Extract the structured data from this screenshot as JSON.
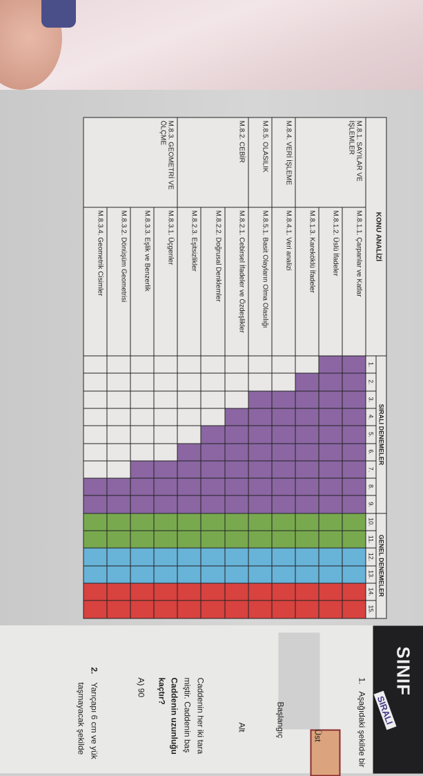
{
  "table": {
    "header": {
      "topic_analysis": "KONU ANALİZİ",
      "sequential_tests": "SIRALI DENEMELER",
      "general_tests": "GENEL DENEMELER",
      "test_numbers": [
        "1.",
        "2.",
        "3.",
        "4.",
        "5.",
        "6.",
        "7.",
        "8.",
        "9.",
        "10.",
        "11.",
        "12.",
        "13.",
        "14.",
        "15."
      ]
    },
    "categories": [
      {
        "label": "M.8.1. SAYILAR VE İŞLEMLER",
        "rows": 3
      },
      {
        "label": "M.8.4. VERİ İŞLEME",
        "rows": 1
      },
      {
        "label": "M.8.5. OLASILIK",
        "rows": 1
      },
      {
        "label": "M.8.2. CEBİR",
        "rows": 3
      },
      {
        "label": "M.8.3. GEOMETRİ VE ÖLÇME",
        "rows": 4
      }
    ],
    "topics": [
      {
        "label": "M.8.1.1. Çarpanlar ve Katlar",
        "first_test": 1
      },
      {
        "label": "M.8.1.2. Üslü İfadeler",
        "first_test": 1
      },
      {
        "label": "M.8.1.3. Kareköklü İfadeler",
        "first_test": 2
      },
      {
        "label": "M.8.4.1. Veri analizi",
        "first_test": 3
      },
      {
        "label": "M.8.5.1. Basit Olayların Olma Olasılığı",
        "first_test": 3
      },
      {
        "label": "M.8.2.1. Cebirsel İfadeler ve Özdeşlikler",
        "first_test": 4
      },
      {
        "label": "M.8.2.2. Doğrusal Denklemler",
        "first_test": 5
      },
      {
        "label": "M.8.2.3. Eşitsizlikler",
        "first_test": 6
      },
      {
        "label": "M.8.3.1. Üçgenler",
        "first_test": 7
      },
      {
        "label": "M.8.3.3. Eşlik ve Benzerlik",
        "first_test": 7
      },
      {
        "label": "M.8.3.2. Dönüşüm Geometrisi",
        "first_test": 8
      },
      {
        "label": "M.8.3.4. Geometrik Cisimler",
        "first_test": 8
      }
    ],
    "column_colors": [
      "#8b66a3",
      "#8b66a3",
      "#8b66a3",
      "#8b66a3",
      "#8b66a3",
      "#8b66a3",
      "#8b66a3",
      "#8b66a3",
      "#8b66a3",
      "#78a94f",
      "#78a94f",
      "#68b3d8",
      "#68b3d8",
      "#d8423f",
      "#d8423f"
    ],
    "empty_color": "#e9e8e6"
  },
  "right_page": {
    "brand_grade": "SINIF",
    "brand_series": "SIRALI",
    "q1_number": "1.",
    "q1_text": "Aşağıdaki şekilde bir",
    "label_top": "Üst",
    "label_start": "Başlangıç",
    "label_bottom": "Alt",
    "line1": "Caddenin her iki tara",
    "line2": "miştir. Caddenin baş",
    "line3": "Caddenin uzunluğu",
    "line4": "kaçtır?",
    "option_a": "A) 90",
    "q2_number": "2.",
    "q2_line1": "Yarıçapı 6 cm ve yük",
    "q2_line2": "taşmayacak şekilde"
  }
}
